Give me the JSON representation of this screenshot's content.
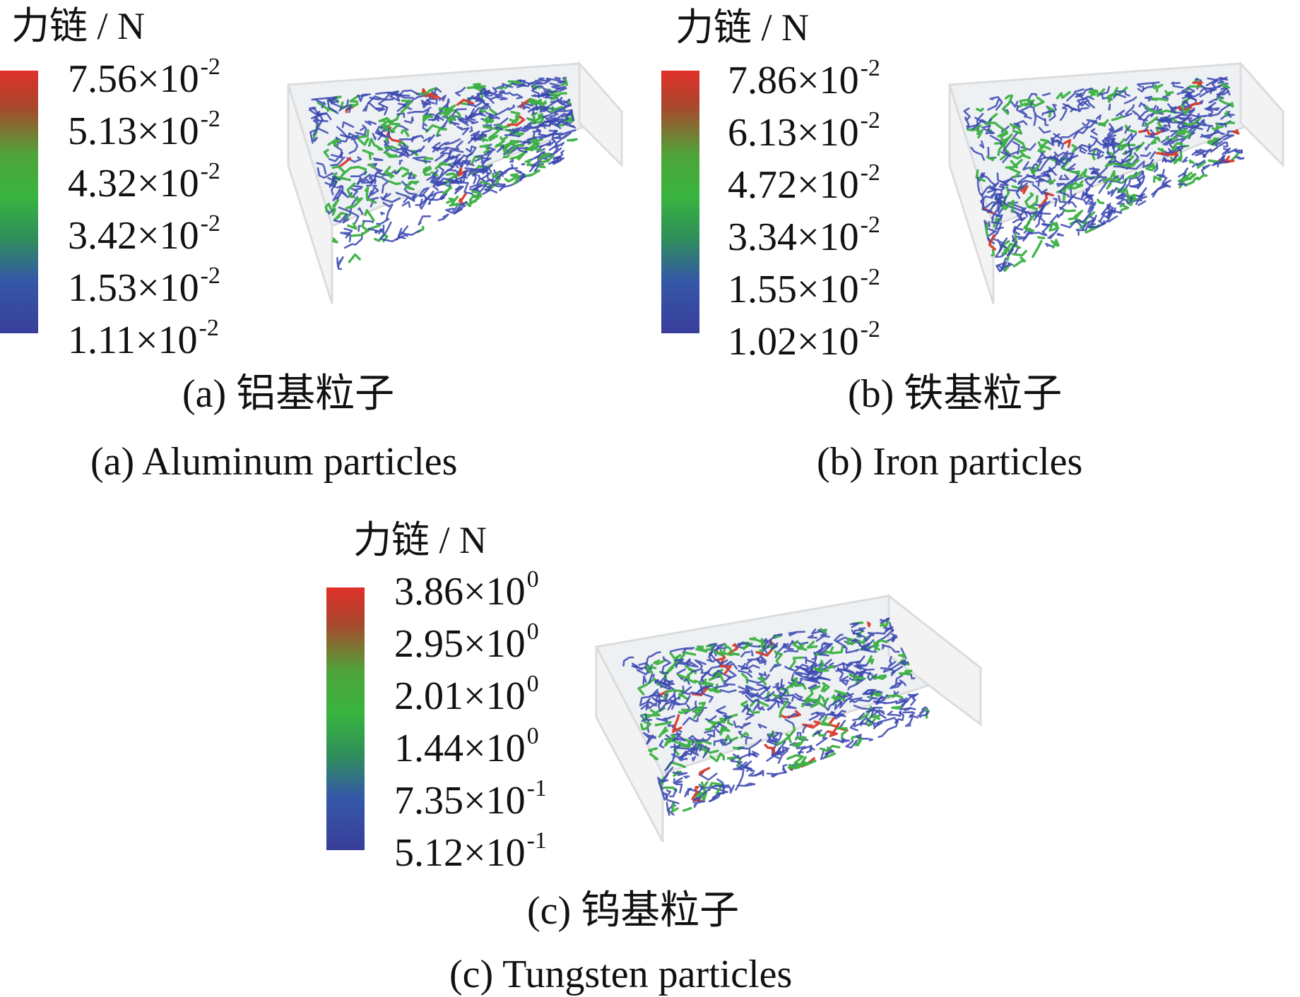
{
  "panels": [
    {
      "id": "a",
      "legend_title": "力链 / N",
      "ticks": [
        {
          "mant": "7.56×10",
          "exp": "-2"
        },
        {
          "mant": "5.13×10",
          "exp": "-2"
        },
        {
          "mant": "4.32×10",
          "exp": "-2"
        },
        {
          "mant": "3.42×10",
          "exp": "-2"
        },
        {
          "mant": "1.53×10",
          "exp": "-2"
        },
        {
          "mant": "1.11×10",
          "exp": "-2"
        }
      ],
      "caption_cn": "(a)  铝基粒子",
      "caption_en": "(a)  Aluminum particles"
    },
    {
      "id": "b",
      "legend_title": "力链 / N",
      "ticks": [
        {
          "mant": "7.86×10",
          "exp": "-2"
        },
        {
          "mant": "6.13×10",
          "exp": "-2"
        },
        {
          "mant": "4.72×10",
          "exp": "-2"
        },
        {
          "mant": "3.34×10",
          "exp": "-2"
        },
        {
          "mant": "1.55×10",
          "exp": "-2"
        },
        {
          "mant": "1.02×10",
          "exp": "-2"
        }
      ],
      "caption_cn": "(b)  铁基粒子",
      "caption_en": "(b)  Iron particles"
    },
    {
      "id": "c",
      "legend_title": "力链 / N",
      "ticks": [
        {
          "mant": "3.86×10",
          "exp": "0"
        },
        {
          "mant": "2.95×10",
          "exp": "0"
        },
        {
          "mant": "2.01×10",
          "exp": "0"
        },
        {
          "mant": "1.44×10",
          "exp": "0"
        },
        {
          "mant": "7.35×10",
          "exp": "-1"
        },
        {
          "mant": "5.12×10",
          "exp": "-1"
        }
      ],
      "caption_cn": "(c)  钨基粒子",
      "caption_en": "(c)  Tungsten particles"
    }
  ],
  "colors": {
    "chain_blue": "#3a46b0",
    "chain_green": "#3cb043",
    "chain_red": "#d83a2a",
    "box_edge": "#dcdcdc"
  }
}
